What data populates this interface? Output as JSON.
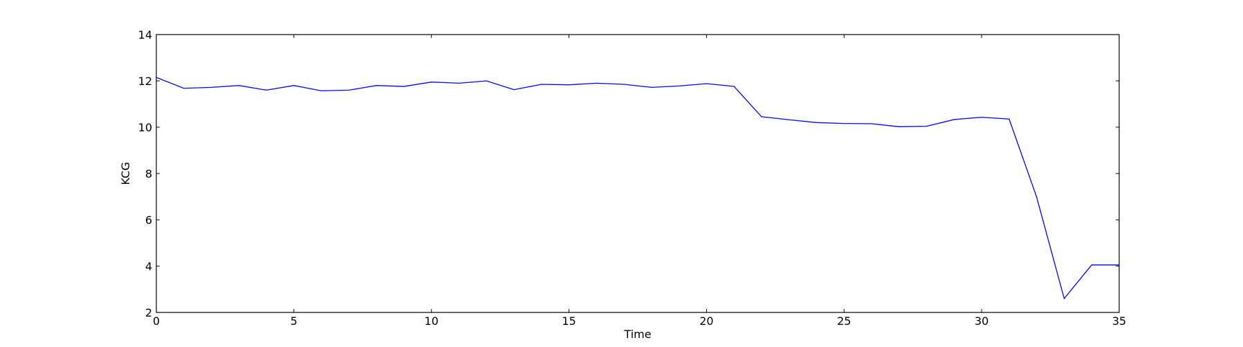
{
  "chart_data": {
    "type": "line",
    "title": "",
    "xlabel": "Time",
    "ylabel": "KCG",
    "xlim": [
      0,
      35
    ],
    "ylim": [
      2,
      14
    ],
    "xticks": [
      0,
      5,
      10,
      15,
      20,
      25,
      30,
      35
    ],
    "yticks": [
      2,
      4,
      6,
      8,
      10,
      12,
      14
    ],
    "grid": false,
    "legend": "none",
    "series": [
      {
        "color": "#0000ff",
        "x": [
          0,
          1,
          2,
          3,
          4,
          5,
          6,
          7,
          8,
          9,
          10,
          11,
          12,
          13,
          14,
          15,
          16,
          17,
          18,
          19,
          20,
          21,
          22,
          23,
          24,
          25,
          26,
          27,
          28,
          29,
          30,
          31,
          32,
          33,
          34,
          35
        ],
        "values": [
          12.15,
          11.68,
          11.72,
          11.8,
          11.6,
          11.8,
          11.57,
          11.6,
          11.8,
          11.76,
          11.95,
          11.9,
          12.0,
          11.62,
          11.85,
          11.83,
          11.9,
          11.85,
          11.72,
          11.78,
          11.88,
          11.76,
          10.45,
          10.32,
          10.2,
          10.16,
          10.15,
          10.02,
          10.04,
          10.33,
          10.43,
          10.35,
          6.98,
          2.6,
          4.05,
          4.05
        ]
      }
    ]
  }
}
